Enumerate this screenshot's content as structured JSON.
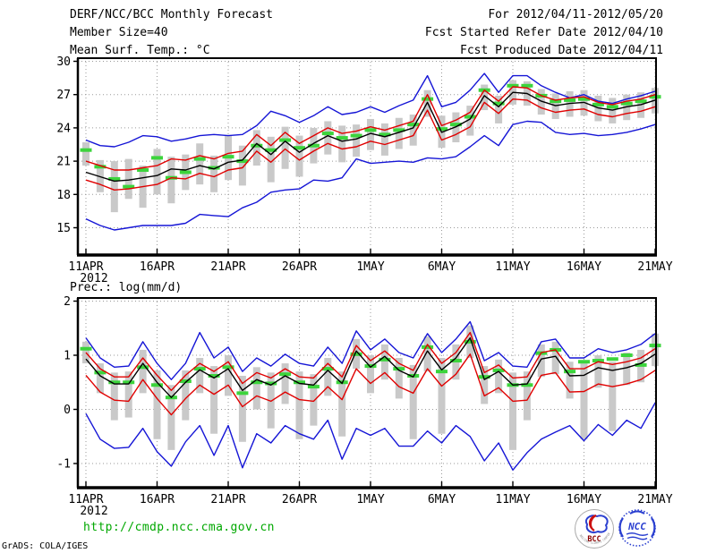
{
  "header": {
    "title": "DERF/NCC/BCC Monthly Forecast",
    "member_size": "Member Size=40",
    "for_range": "For 2012/04/11-2012/05/20",
    "fcst_started": "Fcst Started Refer Date 2012/04/10",
    "fcst_produced": "Fcst Produced Date 2012/04/11"
  },
  "footer": {
    "url": "http://cmdp.ncc.cma.gov.cn",
    "grads_credit": "GrADS: COLA/IGES",
    "bcc_label": "BCC",
    "bcc_subtext": "BEIJING CLIMATE CENTER",
    "ncc_label": "NCC"
  },
  "colors": {
    "envelope_blue": "#1515d6",
    "bound_red": "#e00000",
    "mean_black": "#000000",
    "obs_green": "#3cd43c",
    "spread_gray": "#c9c9c9",
    "grid_gray": "#9a9a9a",
    "url_green": "#00a800",
    "bcc_red": "#8b0000",
    "ncc_blue": "#2a3fd0"
  },
  "chart_data": [
    {
      "type": "line",
      "title": "Mean Surf. Temp.: °C",
      "x_tick_labels": [
        "11APR",
        "16APR",
        "21APR",
        "26APR",
        "1MAY",
        "6MAY",
        "11MAY",
        "16MAY",
        "21MAY"
      ],
      "x_year_label": "2012",
      "x_days": 41,
      "yticks": [
        30,
        27,
        24,
        21,
        18,
        15
      ],
      "ylim": [
        12.5,
        30.3
      ],
      "grid": true,
      "legend": "none",
      "series": [
        {
          "name": "ensemble_max",
          "color": "#1515d6",
          "values": [
            22.9,
            22.4,
            22.3,
            22.7,
            23.3,
            23.2,
            22.8,
            23.0,
            23.3,
            23.4,
            23.3,
            23.4,
            24.2,
            25.5,
            25.1,
            24.5,
            25.1,
            25.9,
            25.2,
            25.4,
            25.9,
            25.4,
            26.0,
            26.5,
            28.7,
            25.9,
            26.3,
            27.4,
            28.9,
            27.2,
            28.7,
            28.7,
            27.8,
            27.2,
            26.7,
            27.0,
            26.4,
            26.2,
            26.6,
            26.9,
            27.3
          ]
        },
        {
          "name": "upper_bound_red",
          "color": "#e00000",
          "values": [
            21.0,
            20.6,
            20.2,
            20.2,
            20.4,
            20.6,
            21.2,
            21.1,
            21.5,
            21.2,
            21.7,
            21.9,
            23.4,
            22.4,
            23.6,
            22.6,
            23.3,
            24.0,
            23.5,
            23.7,
            24.1,
            23.8,
            24.2,
            24.6,
            27.0,
            24.2,
            24.7,
            25.4,
            27.4,
            26.4,
            27.7,
            27.6,
            26.9,
            26.5,
            26.7,
            26.8,
            26.3,
            26.1,
            26.4,
            26.6,
            27.0
          ]
        },
        {
          "name": "ensemble_mean",
          "color": "#000000",
          "values": [
            20.0,
            19.6,
            19.2,
            19.3,
            19.5,
            19.7,
            20.3,
            20.2,
            20.6,
            20.3,
            20.9,
            21.1,
            22.6,
            21.6,
            22.8,
            21.8,
            22.6,
            23.3,
            22.8,
            23.0,
            23.5,
            23.2,
            23.6,
            24.0,
            26.3,
            23.6,
            24.1,
            24.8,
            26.9,
            25.9,
            27.2,
            27.1,
            26.4,
            26.0,
            26.2,
            26.3,
            25.8,
            25.6,
            25.9,
            26.1,
            26.5
          ]
        },
        {
          "name": "lower_bound_red",
          "color": "#e00000",
          "values": [
            19.3,
            18.9,
            18.4,
            18.5,
            18.7,
            18.9,
            19.5,
            19.4,
            19.9,
            19.6,
            20.2,
            20.4,
            21.9,
            20.9,
            22.1,
            21.1,
            21.9,
            22.6,
            22.1,
            22.3,
            22.8,
            22.5,
            22.9,
            23.3,
            25.6,
            22.9,
            23.4,
            24.1,
            26.3,
            25.3,
            26.6,
            26.5,
            25.8,
            25.4,
            25.6,
            25.7,
            25.2,
            25.0,
            25.3,
            25.5,
            25.9
          ]
        },
        {
          "name": "ensemble_min",
          "color": "#1515d6",
          "values": [
            15.8,
            15.2,
            14.8,
            15.0,
            15.2,
            15.2,
            15.2,
            15.4,
            16.2,
            16.1,
            16.0,
            16.8,
            17.3,
            18.2,
            18.4,
            18.5,
            19.3,
            19.2,
            19.5,
            21.2,
            20.8,
            20.9,
            21.0,
            20.9,
            21.3,
            21.2,
            21.4,
            22.3,
            23.3,
            22.4,
            24.3,
            24.6,
            24.5,
            23.6,
            23.4,
            23.5,
            23.3,
            23.4,
            23.6,
            23.9,
            24.3
          ]
        }
      ],
      "obs_dashes": {
        "name": "observation",
        "color": "#3cd43c",
        "values": [
          22.0,
          20.5,
          19.4,
          18.7,
          20.2,
          21.3,
          19.5,
          20.0,
          21.2,
          20.4,
          21.4,
          21.0,
          22.4,
          22.0,
          22.9,
          22.2,
          22.4,
          23.5,
          23.1,
          23.3,
          23.8,
          23.4,
          23.8,
          24.3,
          26.6,
          23.9,
          24.3,
          25.0,
          27.4,
          26.2,
          27.8,
          27.8,
          26.9,
          26.4,
          26.5,
          26.6,
          26.1,
          25.9,
          26.2,
          26.4,
          26.8
        ]
      },
      "spread_bars": {
        "name": "member_spread",
        "color": "#c9c9c9",
        "ranges": [
          [
            20.6,
            22.7
          ],
          [
            18.2,
            21.1
          ],
          [
            16.4,
            21.0
          ],
          [
            17.6,
            21.2
          ],
          [
            16.8,
            20.6
          ],
          [
            18.0,
            22.1
          ],
          [
            17.2,
            21.4
          ],
          [
            18.4,
            21.6
          ],
          [
            18.9,
            22.6
          ],
          [
            18.2,
            21.5
          ],
          [
            19.3,
            23.3
          ],
          [
            18.8,
            22.4
          ],
          [
            20.6,
            23.8
          ],
          [
            19.1,
            23.2
          ],
          [
            20.3,
            24.1
          ],
          [
            19.6,
            23.3
          ],
          [
            20.8,
            24.0
          ],
          [
            21.6,
            24.6
          ],
          [
            20.9,
            24.2
          ],
          [
            21.4,
            24.3
          ],
          [
            22.0,
            24.8
          ],
          [
            21.5,
            24.4
          ],
          [
            22.1,
            24.9
          ],
          [
            22.4,
            25.2
          ],
          [
            25.0,
            27.4
          ],
          [
            22.2,
            25.1
          ],
          [
            22.7,
            25.4
          ],
          [
            23.3,
            26.0
          ],
          [
            25.6,
            27.9
          ],
          [
            24.4,
            26.9
          ],
          [
            26.1,
            28.3
          ],
          [
            26.0,
            28.2
          ],
          [
            25.2,
            27.5
          ],
          [
            24.8,
            27.1
          ],
          [
            25.0,
            27.3
          ],
          [
            25.1,
            27.4
          ],
          [
            24.6,
            26.9
          ],
          [
            24.4,
            26.7
          ],
          [
            24.7,
            27.0
          ],
          [
            24.9,
            27.2
          ],
          [
            25.3,
            27.6
          ]
        ]
      }
    },
    {
      "type": "line",
      "title": "Prec.: log(mm/d)",
      "x_tick_labels": [
        "11APR",
        "16APR",
        "21APR",
        "26APR",
        "1MAY",
        "6MAY",
        "11MAY",
        "16MAY",
        "21MAY"
      ],
      "x_year_label": "2012",
      "x_days": 41,
      "yticks": [
        2,
        1,
        0,
        -1
      ],
      "ylim": [
        -1.45,
        2.05
      ],
      "grid": true,
      "legend": "none",
      "series": [
        {
          "name": "ensemble_max",
          "color": "#1515d6",
          "values": [
            1.32,
            0.95,
            0.78,
            0.8,
            1.25,
            0.85,
            0.55,
            0.85,
            1.42,
            0.95,
            1.15,
            0.7,
            0.95,
            0.8,
            1.02,
            0.85,
            0.8,
            1.15,
            0.85,
            1.45,
            1.1,
            1.3,
            1.05,
            0.95,
            1.4,
            1.05,
            1.3,
            1.62,
            0.9,
            1.05,
            0.8,
            0.78,
            1.25,
            1.3,
            0.95,
            0.95,
            1.12,
            1.05,
            1.1,
            1.2,
            1.4
          ]
        },
        {
          "name": "upper_bound_red",
          "color": "#e00000",
          "values": [
            1.05,
            0.75,
            0.6,
            0.6,
            0.95,
            0.63,
            0.35,
            0.63,
            0.85,
            0.7,
            0.88,
            0.48,
            0.68,
            0.58,
            0.75,
            0.6,
            0.58,
            0.85,
            0.6,
            1.18,
            0.9,
            1.08,
            0.85,
            0.72,
            1.2,
            0.85,
            1.05,
            1.42,
            0.68,
            0.82,
            0.58,
            0.6,
            1.05,
            1.1,
            0.75,
            0.75,
            0.88,
            0.83,
            0.88,
            0.95,
            1.12
          ]
        },
        {
          "name": "ensemble_mean",
          "color": "#000000",
          "values": [
            0.93,
            0.62,
            0.47,
            0.47,
            0.85,
            0.5,
            0.22,
            0.5,
            0.73,
            0.58,
            0.75,
            0.35,
            0.55,
            0.45,
            0.62,
            0.48,
            0.45,
            0.72,
            0.48,
            1.08,
            0.78,
            0.98,
            0.72,
            0.6,
            1.08,
            0.73,
            0.95,
            1.32,
            0.55,
            0.7,
            0.45,
            0.47,
            0.93,
            0.98,
            0.62,
            0.63,
            0.77,
            0.72,
            0.77,
            0.85,
            1.02
          ]
        },
        {
          "name": "lower_bound_red",
          "color": "#e00000",
          "values": [
            0.63,
            0.32,
            0.17,
            0.15,
            0.55,
            0.2,
            -0.1,
            0.2,
            0.45,
            0.28,
            0.45,
            0.05,
            0.25,
            0.15,
            0.32,
            0.18,
            0.15,
            0.42,
            0.18,
            0.75,
            0.48,
            0.68,
            0.42,
            0.3,
            0.75,
            0.43,
            0.65,
            1.02,
            0.25,
            0.4,
            0.15,
            0.17,
            0.63,
            0.68,
            0.32,
            0.33,
            0.47,
            0.42,
            0.47,
            0.55,
            0.72
          ]
        },
        {
          "name": "ensemble_min",
          "color": "#1515d6",
          "values": [
            -0.08,
            -0.55,
            -0.72,
            -0.7,
            -0.35,
            -0.78,
            -1.05,
            -0.6,
            -0.3,
            -0.85,
            -0.3,
            -1.08,
            -0.45,
            -0.62,
            -0.3,
            -0.45,
            -0.55,
            -0.2,
            -0.92,
            -0.35,
            -0.48,
            -0.35,
            -0.68,
            -0.68,
            -0.4,
            -0.62,
            -0.3,
            -0.5,
            -0.95,
            -0.62,
            -1.12,
            -0.8,
            -0.55,
            -0.42,
            -0.3,
            -0.58,
            -0.28,
            -0.48,
            -0.2,
            -0.35,
            0.12
          ]
        }
      ],
      "obs_dashes": {
        "name": "observation",
        "color": "#3cd43c",
        "values": [
          1.12,
          0.68,
          0.5,
          0.5,
          0.78,
          0.45,
          0.22,
          0.52,
          0.75,
          0.62,
          0.78,
          0.3,
          0.5,
          0.48,
          0.65,
          0.5,
          0.42,
          0.75,
          0.5,
          1.02,
          0.8,
          0.92,
          0.75,
          0.62,
          1.15,
          0.7,
          0.9,
          1.25,
          0.6,
          0.72,
          0.45,
          0.45,
          1.04,
          1.1,
          0.7,
          0.88,
          0.9,
          0.93,
          1.0,
          0.82,
          1.18
        ]
      },
      "spread_bars": {
        "name": "member_spread",
        "color": "#c9c9c9",
        "ranges": [
          [
            0.85,
            1.25
          ],
          [
            0.3,
            0.85
          ],
          [
            -0.2,
            0.68
          ],
          [
            -0.15,
            0.7
          ],
          [
            0.3,
            1.1
          ],
          [
            -0.55,
            0.72
          ],
          [
            -0.75,
            0.45
          ],
          [
            -0.2,
            0.72
          ],
          [
            0.3,
            0.95
          ],
          [
            -0.45,
            0.8
          ],
          [
            0.25,
            1.0
          ],
          [
            -0.6,
            0.62
          ],
          [
            0.0,
            0.78
          ],
          [
            -0.35,
            0.68
          ],
          [
            0.1,
            0.85
          ],
          [
            -0.55,
            0.7
          ],
          [
            -0.3,
            0.65
          ],
          [
            0.25,
            0.95
          ],
          [
            -0.5,
            0.7
          ],
          [
            0.75,
            1.3
          ],
          [
            0.3,
            1.0
          ],
          [
            0.55,
            1.2
          ],
          [
            0.2,
            0.95
          ],
          [
            -0.55,
            0.82
          ],
          [
            0.7,
            1.35
          ],
          [
            -0.45,
            0.95
          ],
          [
            0.55,
            1.2
          ],
          [
            0.95,
            1.55
          ],
          [
            0.1,
            0.8
          ],
          [
            0.3,
            0.92
          ],
          [
            -0.75,
            0.68
          ],
          [
            -0.2,
            0.7
          ],
          [
            0.6,
            1.2
          ],
          [
            0.65,
            1.25
          ],
          [
            0.2,
            0.88
          ],
          [
            -0.55,
            0.85
          ],
          [
            0.4,
            1.0
          ],
          [
            -0.4,
            0.88
          ],
          [
            0.45,
            1.05
          ],
          [
            0.5,
            1.1
          ],
          [
            0.8,
            1.4
          ]
        ]
      }
    }
  ]
}
